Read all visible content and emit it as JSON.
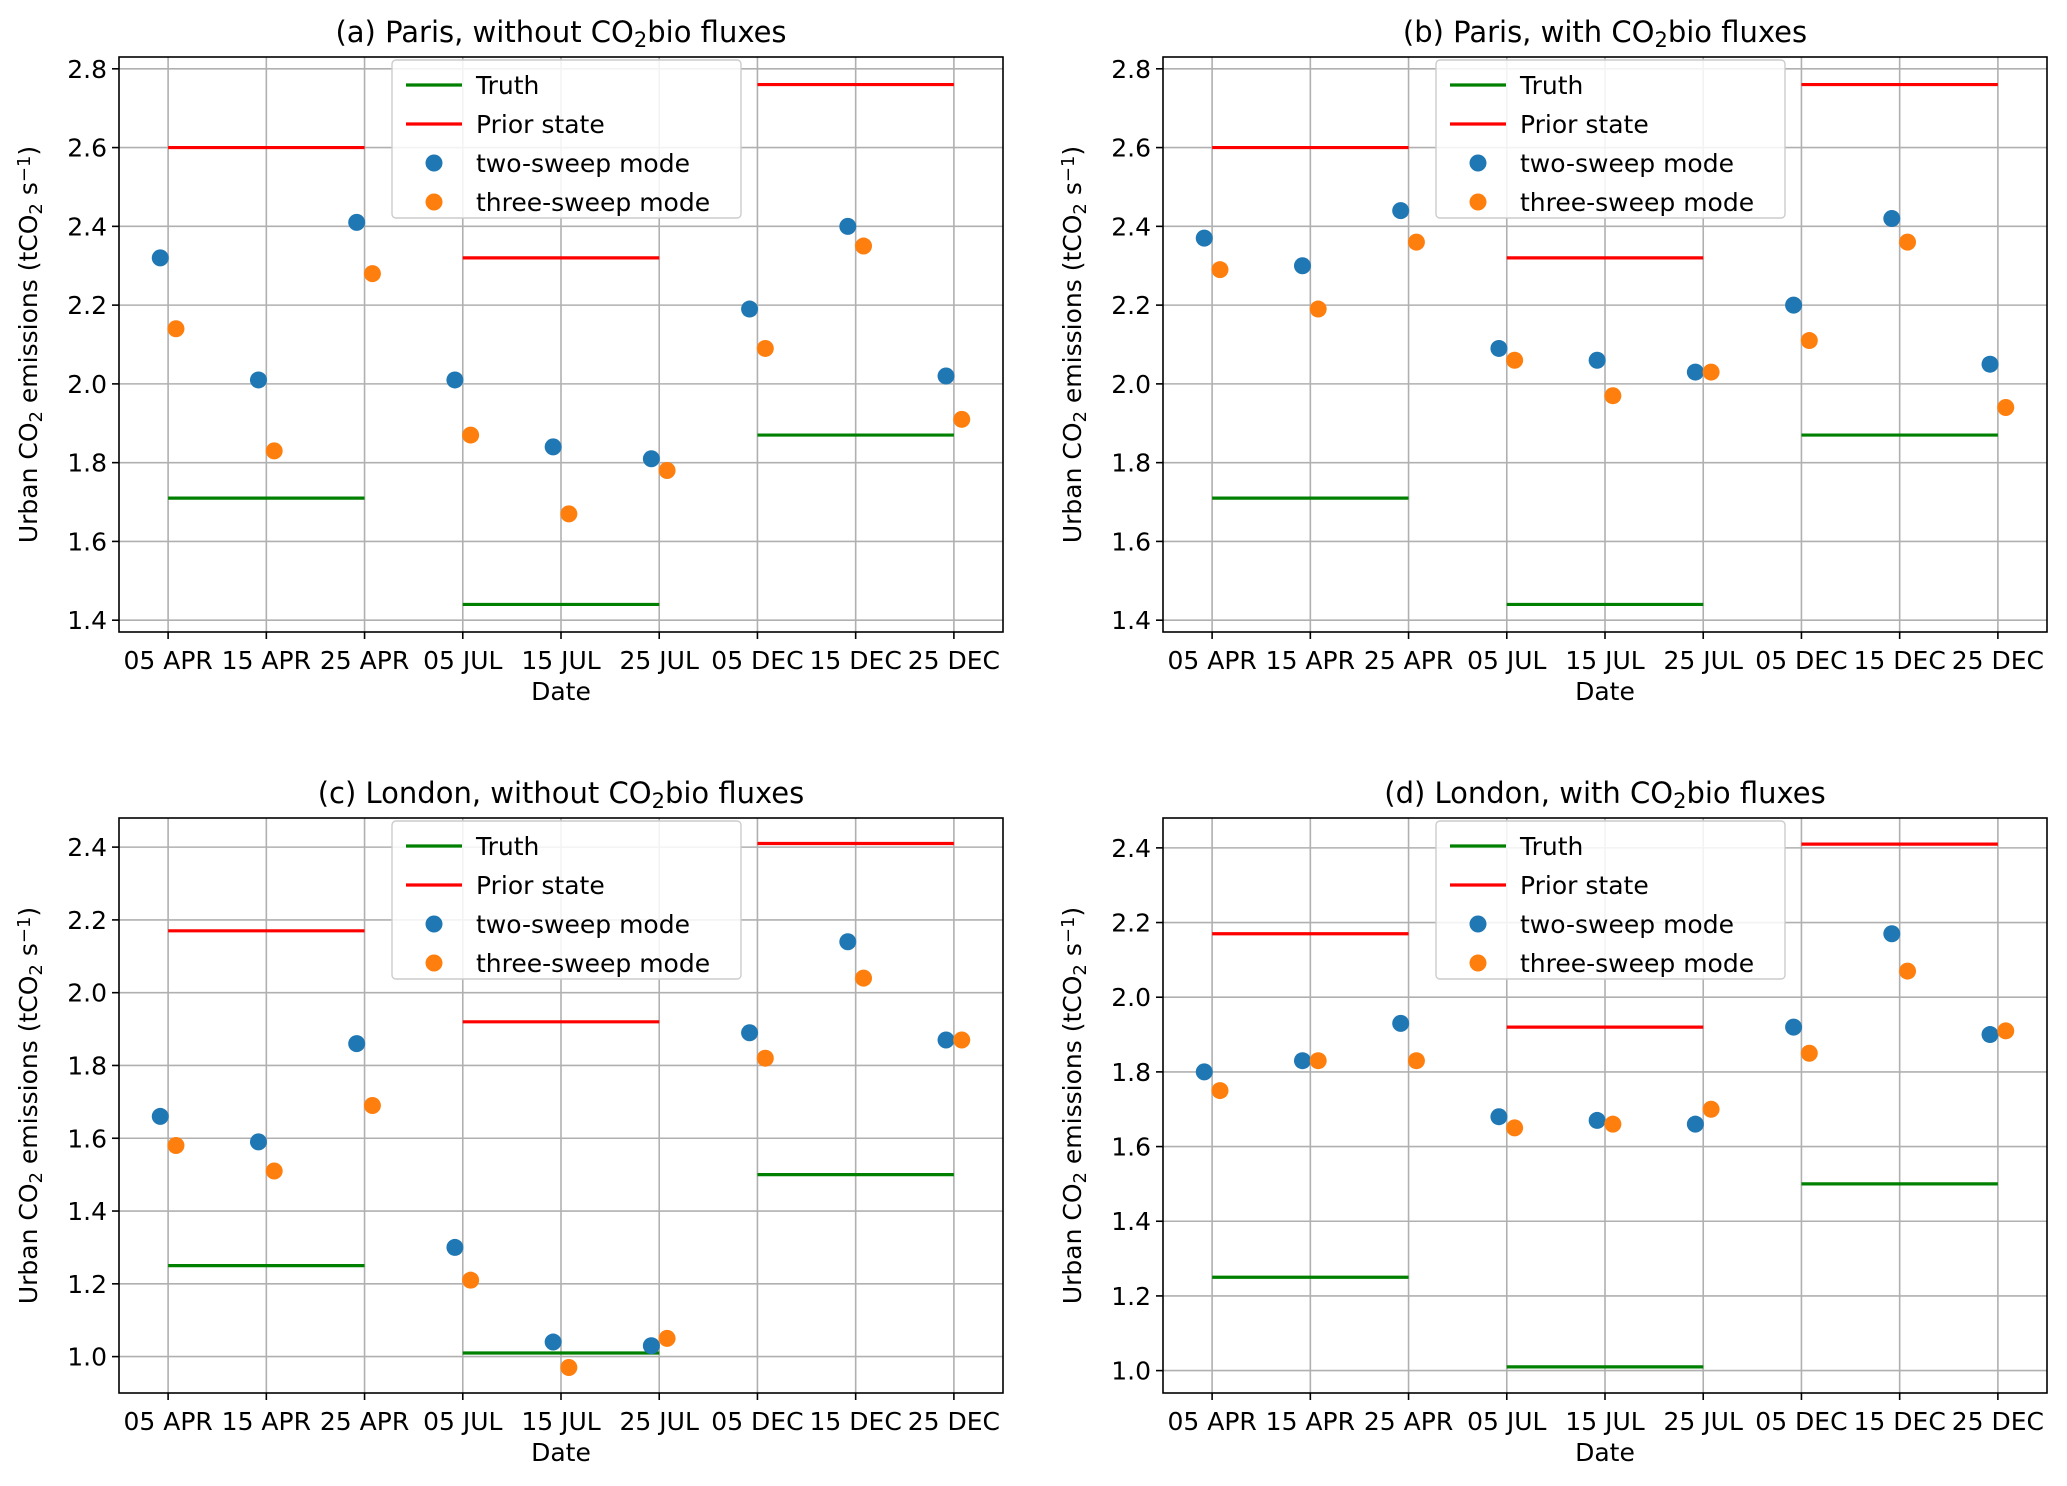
{
  "figure": {
    "sub_suffix": "bio fluxes"
  },
  "colors": {
    "truth": "#008000",
    "prior": "#ff0000",
    "two_sweep": "#1f77b4",
    "three_sweep": "#ff7f0e",
    "grid": "#b0b0b0"
  },
  "chart_data": [
    {
      "type": "scatter",
      "title": "(a) Paris, without CO2bio fluxes",
      "title_prefix": "(a) Paris, without CO",
      "xlabel": "Date",
      "ylabel": "Urban CO2 emissions (tCO2 s−1)",
      "ylim": [
        1.37,
        2.83
      ],
      "yticks": [
        1.4,
        1.6,
        1.8,
        2.0,
        2.2,
        2.4,
        2.6,
        2.8
      ],
      "xlim": [
        0,
        9
      ],
      "xticks": [
        0.5,
        1.5,
        2.5,
        3.5,
        4.5,
        5.5,
        6.5,
        7.5,
        8.5
      ],
      "xtick_labels": [
        "05 APR",
        "15 APR",
        "25 APR",
        "05 JUL",
        "15 JUL",
        "25 JUL",
        "05 DEC",
        "15 DEC",
        "25 DEC"
      ],
      "legend": {
        "location": "top-center",
        "entries": [
          "Truth",
          "Prior state",
          "two-sweep mode",
          "three-sweep mode"
        ]
      },
      "truth": [
        {
          "x_start": 0.5,
          "x_end": 2.5,
          "value": 1.71
        },
        {
          "x_start": 3.5,
          "x_end": 5.5,
          "value": 1.44
        },
        {
          "x_start": 6.5,
          "x_end": 8.5,
          "value": 1.87
        }
      ],
      "prior": [
        {
          "x_start": 0.5,
          "x_end": 2.5,
          "value": 2.6
        },
        {
          "x_start": 3.5,
          "x_end": 5.5,
          "value": 2.32
        },
        {
          "x_start": 6.5,
          "x_end": 8.5,
          "value": 2.76
        }
      ],
      "two_sweep": {
        "x": [
          0.42,
          1.42,
          2.42,
          3.42,
          4.42,
          5.42,
          6.42,
          7.42,
          8.42
        ],
        "y": [
          2.32,
          2.01,
          2.41,
          2.01,
          1.84,
          1.81,
          2.19,
          2.4,
          2.02
        ]
      },
      "three_sweep": {
        "x": [
          0.58,
          1.58,
          2.58,
          3.58,
          4.58,
          5.58,
          6.58,
          7.58,
          8.58
        ],
        "y": [
          2.14,
          1.83,
          2.28,
          1.87,
          1.67,
          1.78,
          2.09,
          2.35,
          1.91
        ]
      }
    },
    {
      "type": "scatter",
      "title": "(b) Paris, with CO2bio fluxes",
      "title_prefix": "(b) Paris, with CO",
      "xlabel": "Date",
      "ylabel": "Urban CO2 emissions (tCO2 s−1)",
      "ylim": [
        1.37,
        2.83
      ],
      "yticks": [
        1.4,
        1.6,
        1.8,
        2.0,
        2.2,
        2.4,
        2.6,
        2.8
      ],
      "xlim": [
        0,
        9
      ],
      "xticks": [
        0.5,
        1.5,
        2.5,
        3.5,
        4.5,
        5.5,
        6.5,
        7.5,
        8.5
      ],
      "xtick_labels": [
        "05 APR",
        "15 APR",
        "25 APR",
        "05 JUL",
        "15 JUL",
        "25 JUL",
        "05 DEC",
        "15 DEC",
        "25 DEC"
      ],
      "legend": {
        "location": "top-center",
        "entries": [
          "Truth",
          "Prior state",
          "two-sweep mode",
          "three-sweep mode"
        ]
      },
      "truth": [
        {
          "x_start": 0.5,
          "x_end": 2.5,
          "value": 1.71
        },
        {
          "x_start": 3.5,
          "x_end": 5.5,
          "value": 1.44
        },
        {
          "x_start": 6.5,
          "x_end": 8.5,
          "value": 1.87
        }
      ],
      "prior": [
        {
          "x_start": 0.5,
          "x_end": 2.5,
          "value": 2.6
        },
        {
          "x_start": 3.5,
          "x_end": 5.5,
          "value": 2.32
        },
        {
          "x_start": 6.5,
          "x_end": 8.5,
          "value": 2.76
        }
      ],
      "two_sweep": {
        "x": [
          0.42,
          1.42,
          2.42,
          3.42,
          4.42,
          5.42,
          6.42,
          7.42,
          8.42
        ],
        "y": [
          2.37,
          2.3,
          2.44,
          2.09,
          2.06,
          2.03,
          2.2,
          2.42,
          2.05
        ]
      },
      "three_sweep": {
        "x": [
          0.58,
          1.58,
          2.58,
          3.58,
          4.58,
          5.58,
          6.58,
          7.58,
          8.58
        ],
        "y": [
          2.29,
          2.19,
          2.36,
          2.06,
          1.97,
          2.03,
          2.11,
          2.36,
          1.94
        ]
      }
    },
    {
      "type": "scatter",
      "title": "(c) London, without CO2bio fluxes",
      "title_prefix": "(c) London, without CO",
      "xlabel": "Date",
      "ylabel": "Urban CO2 emissions (tCO2 s−1)",
      "ylim": [
        0.9,
        2.48
      ],
      "yticks": [
        1.0,
        1.2,
        1.4,
        1.6,
        1.8,
        2.0,
        2.2,
        2.4
      ],
      "xlim": [
        0,
        9
      ],
      "xticks": [
        0.5,
        1.5,
        2.5,
        3.5,
        4.5,
        5.5,
        6.5,
        7.5,
        8.5
      ],
      "xtick_labels": [
        "05 APR",
        "15 APR",
        "25 APR",
        "05 JUL",
        "15 JUL",
        "25 JUL",
        "05 DEC",
        "15 DEC",
        "25 DEC"
      ],
      "legend": {
        "location": "top-center",
        "entries": [
          "Truth",
          "Prior state",
          "two-sweep mode",
          "three-sweep mode"
        ]
      },
      "truth": [
        {
          "x_start": 0.5,
          "x_end": 2.5,
          "value": 1.25
        },
        {
          "x_start": 3.5,
          "x_end": 5.5,
          "value": 1.01
        },
        {
          "x_start": 6.5,
          "x_end": 8.5,
          "value": 1.5
        }
      ],
      "prior": [
        {
          "x_start": 0.5,
          "x_end": 2.5,
          "value": 2.17
        },
        {
          "x_start": 3.5,
          "x_end": 5.5,
          "value": 1.92
        },
        {
          "x_start": 6.5,
          "x_end": 8.5,
          "value": 2.41
        }
      ],
      "two_sweep": {
        "x": [
          0.42,
          1.42,
          2.42,
          3.42,
          4.42,
          5.42,
          6.42,
          7.42,
          8.42
        ],
        "y": [
          1.66,
          1.59,
          1.86,
          1.3,
          1.04,
          1.03,
          1.89,
          2.14,
          1.87
        ]
      },
      "three_sweep": {
        "x": [
          0.58,
          1.58,
          2.58,
          3.58,
          4.58,
          5.58,
          6.58,
          7.58,
          8.58
        ],
        "y": [
          1.58,
          1.51,
          1.69,
          1.21,
          0.97,
          1.05,
          1.82,
          2.04,
          1.87
        ]
      }
    },
    {
      "type": "scatter",
      "title": "(d) London, with CO2bio fluxes",
      "title_prefix": "(d) London, with CO",
      "xlabel": "Date",
      "ylabel": "Urban CO2 emissions (tCO2 s−1)",
      "ylim": [
        0.94,
        2.48
      ],
      "yticks": [
        1.0,
        1.2,
        1.4,
        1.6,
        1.8,
        2.0,
        2.2,
        2.4
      ],
      "xlim": [
        0,
        9
      ],
      "xticks": [
        0.5,
        1.5,
        2.5,
        3.5,
        4.5,
        5.5,
        6.5,
        7.5,
        8.5
      ],
      "xtick_labels": [
        "05 APR",
        "15 APR",
        "25 APR",
        "05 JUL",
        "15 JUL",
        "25 JUL",
        "05 DEC",
        "15 DEC",
        "25 DEC"
      ],
      "legend": {
        "location": "top-center",
        "entries": [
          "Truth",
          "Prior state",
          "two-sweep mode",
          "three-sweep mode"
        ]
      },
      "truth": [
        {
          "x_start": 0.5,
          "x_end": 2.5,
          "value": 1.25
        },
        {
          "x_start": 3.5,
          "x_end": 5.5,
          "value": 1.01
        },
        {
          "x_start": 6.5,
          "x_end": 8.5,
          "value": 1.5
        }
      ],
      "prior": [
        {
          "x_start": 0.5,
          "x_end": 2.5,
          "value": 2.17
        },
        {
          "x_start": 3.5,
          "x_end": 5.5,
          "value": 1.92
        },
        {
          "x_start": 6.5,
          "x_end": 8.5,
          "value": 2.41
        }
      ],
      "two_sweep": {
        "x": [
          0.42,
          1.42,
          2.42,
          3.42,
          4.42,
          5.42,
          6.42,
          7.42,
          8.42
        ],
        "y": [
          1.8,
          1.83,
          1.93,
          1.68,
          1.67,
          1.66,
          1.92,
          2.17,
          1.9
        ]
      },
      "three_sweep": {
        "x": [
          0.58,
          1.58,
          2.58,
          3.58,
          4.58,
          5.58,
          6.58,
          7.58,
          8.58
        ],
        "y": [
          1.75,
          1.83,
          1.83,
          1.65,
          1.66,
          1.7,
          1.85,
          2.07,
          1.91
        ]
      }
    }
  ]
}
